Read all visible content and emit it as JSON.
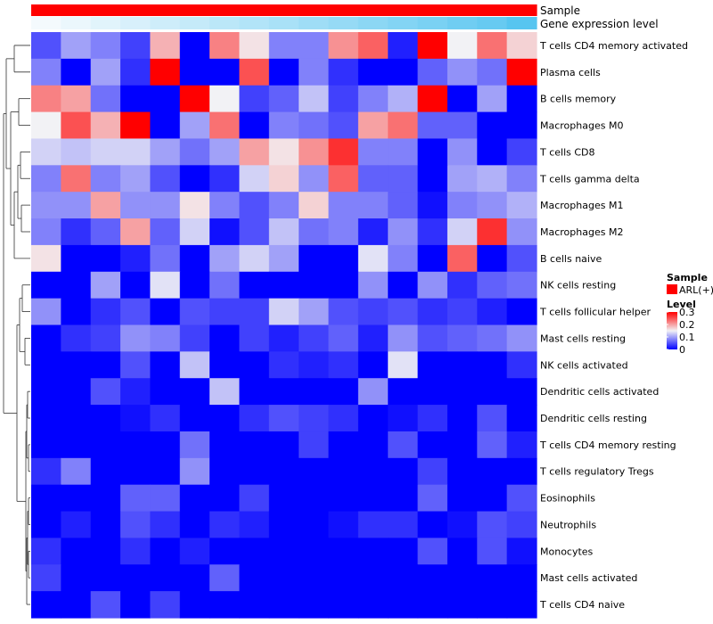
{
  "chart_data": {
    "type": "heatmap",
    "annotation_tracks": [
      {
        "label": "Sample",
        "legend_entries": [
          {
            "label": "ARL(+)",
            "color": "#ff0000"
          }
        ]
      },
      {
        "label": "Gene expression level"
      }
    ],
    "rows": [
      "T cells CD4 memory activated",
      "Plasma cells",
      "B cells memory",
      "Macrophages M0",
      "T cells CD8",
      "T cells gamma delta",
      "Macrophages M1",
      "Macrophages M2",
      "B cells naive",
      "NK cells resting",
      "T cells follicular helper",
      "Mast cells resting",
      "NK cells activated",
      "Dendritic cells activated",
      "Dendritic cells resting",
      "T cells CD4 memory resting",
      "T cells regulatory  Tregs",
      "Eosinophils",
      "Neutrophils",
      "Monocytes",
      "Mast cells activated",
      "T cells CD4 naive"
    ],
    "gene_expression_level": [
      0.0,
      0.06,
      0.12,
      0.18,
      0.24,
      0.3,
      0.36,
      0.42,
      0.48,
      0.54,
      0.6,
      0.66,
      0.72,
      0.78,
      0.84,
      0.9,
      1.0
    ],
    "values": [
      [
        0.05,
        0.1,
        0.08,
        0.04,
        0.19,
        0.0,
        0.22,
        0.16,
        0.08,
        0.08,
        0.21,
        0.24,
        0.02,
        0.3,
        0.15,
        0.23,
        0.17
      ],
      [
        0.08,
        0.0,
        0.1,
        0.03,
        0.3,
        0.0,
        0.0,
        0.25,
        0.0,
        0.08,
        0.03,
        0.0,
        0.0,
        0.06,
        0.09,
        0.07,
        0.3
      ],
      [
        0.22,
        0.2,
        0.07,
        0.0,
        0.0,
        0.3,
        0.15,
        0.04,
        0.06,
        0.12,
        0.04,
        0.08,
        0.11,
        0.3,
        0.0,
        0.1,
        0.0
      ],
      [
        0.15,
        0.25,
        0.19,
        0.3,
        0.0,
        0.1,
        0.23,
        0.0,
        0.08,
        0.07,
        0.05,
        0.2,
        0.23,
        0.06,
        0.06,
        0.0,
        0.0
      ],
      [
        0.13,
        0.12,
        0.13,
        0.13,
        0.1,
        0.07,
        0.1,
        0.2,
        0.16,
        0.21,
        0.27,
        0.08,
        0.08,
        0.0,
        0.09,
        0.0,
        0.04
      ],
      [
        0.08,
        0.23,
        0.08,
        0.1,
        0.05,
        0.0,
        0.03,
        0.13,
        0.17,
        0.09,
        0.24,
        0.06,
        0.06,
        0.0,
        0.1,
        0.11,
        0.08
      ],
      [
        0.09,
        0.09,
        0.2,
        0.09,
        0.09,
        0.16,
        0.08,
        0.05,
        0.08,
        0.17,
        0.08,
        0.08,
        0.06,
        0.01,
        0.08,
        0.09,
        0.11
      ],
      [
        0.08,
        0.03,
        0.06,
        0.2,
        0.06,
        0.13,
        0.01,
        0.05,
        0.12,
        0.07,
        0.08,
        0.02,
        0.09,
        0.03,
        0.13,
        0.27,
        0.09
      ],
      [
        0.16,
        0.0,
        0.0,
        0.02,
        0.07,
        0.0,
        0.1,
        0.13,
        0.1,
        0.0,
        0.0,
        0.14,
        0.08,
        0.0,
        0.24,
        0.0,
        0.05
      ],
      [
        0.0,
        0.0,
        0.1,
        0.0,
        0.14,
        0.0,
        0.07,
        0.0,
        0.0,
        0.0,
        0.0,
        0.09,
        0.0,
        0.09,
        0.03,
        0.06,
        0.07
      ],
      [
        0.09,
        0.0,
        0.03,
        0.05,
        0.0,
        0.05,
        0.04,
        0.04,
        0.13,
        0.1,
        0.05,
        0.04,
        0.05,
        0.03,
        0.04,
        0.02,
        0.0
      ],
      [
        0.0,
        0.03,
        0.04,
        0.09,
        0.08,
        0.04,
        0.0,
        0.04,
        0.02,
        0.04,
        0.06,
        0.02,
        0.09,
        0.05,
        0.06,
        0.07,
        0.09
      ],
      [
        0.0,
        0.0,
        0.0,
        0.05,
        0.0,
        0.12,
        0.0,
        0.0,
        0.03,
        0.02,
        0.03,
        0.0,
        0.14,
        0.0,
        0.0,
        0.0,
        0.03
      ],
      [
        0.0,
        0.0,
        0.05,
        0.02,
        0.0,
        0.0,
        0.12,
        0.0,
        0.0,
        0.0,
        0.0,
        0.09,
        0.0,
        0.0,
        0.0,
        0.0,
        0.0
      ],
      [
        0.0,
        0.0,
        0.0,
        0.01,
        0.03,
        0.0,
        0.0,
        0.03,
        0.05,
        0.04,
        0.03,
        0.0,
        0.01,
        0.03,
        0.0,
        0.05,
        0.0
      ],
      [
        0.0,
        0.0,
        0.0,
        0.0,
        0.0,
        0.07,
        0.0,
        0.0,
        0.0,
        0.04,
        0.0,
        0.0,
        0.05,
        0.0,
        0.0,
        0.06,
        0.02
      ],
      [
        0.03,
        0.08,
        0.0,
        0.0,
        0.0,
        0.09,
        0.0,
        0.0,
        0.0,
        0.0,
        0.0,
        0.0,
        0.0,
        0.04,
        0.0,
        0.0,
        0.0
      ],
      [
        0.0,
        0.0,
        0.0,
        0.06,
        0.06,
        0.0,
        0.0,
        0.04,
        0.0,
        0.0,
        0.0,
        0.0,
        0.0,
        0.06,
        0.0,
        0.0,
        0.05
      ],
      [
        0.0,
        0.02,
        0.0,
        0.05,
        0.03,
        0.0,
        0.03,
        0.02,
        0.0,
        0.0,
        0.01,
        0.03,
        0.03,
        0.0,
        0.01,
        0.05,
        0.04
      ],
      [
        0.03,
        0.0,
        0.0,
        0.03,
        0.0,
        0.02,
        0.0,
        0.0,
        0.0,
        0.0,
        0.0,
        0.0,
        0.0,
        0.05,
        0.0,
        0.05,
        0.01
      ],
      [
        0.04,
        0.0,
        0.0,
        0.0,
        0.0,
        0.0,
        0.06,
        0.0,
        0.0,
        0.0,
        0.0,
        0.0,
        0.0,
        0.0,
        0.0,
        0.0,
        0.0
      ],
      [
        0.0,
        0.0,
        0.05,
        0.0,
        0.04,
        0.0,
        0.0,
        0.0,
        0.0,
        0.0,
        0.0,
        0.0,
        0.0,
        0.0,
        0.0,
        0.0,
        0.0
      ]
    ],
    "color_scale": {
      "min": 0,
      "mid": 0.15,
      "max": 0.3,
      "min_color": "#0000ff",
      "mid_color": "#f2f2f5",
      "max_color": "#ff0000"
    },
    "legend": {
      "sample_title": "Sample",
      "level_title": "Level",
      "level_ticks": [
        {
          "value": 0.3,
          "label": "0.3"
        },
        {
          "value": 0.2,
          "label": "0.2"
        },
        {
          "value": 0.1,
          "label": "0.1"
        },
        {
          "value": 0,
          "label": "0"
        }
      ]
    },
    "expression_track_colors": {
      "low": "#f4fafd",
      "high": "#57c5f0"
    },
    "has_row_dendrogram": true
  }
}
